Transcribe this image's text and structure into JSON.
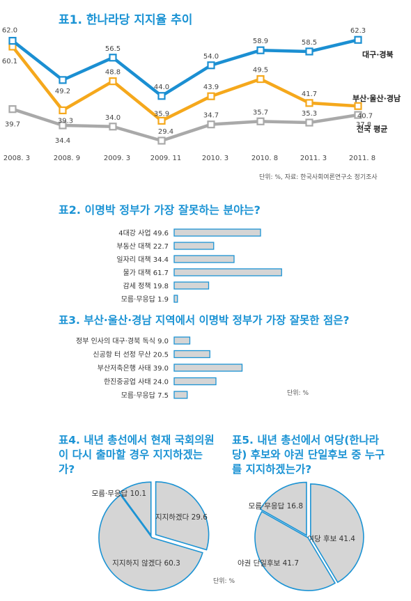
{
  "colors": {
    "title": "#1b93d4",
    "daegu": "#1b8fd2",
    "busan": "#f5a81c",
    "national": "#a9a9a9",
    "bar_fill": "#d5d5d5",
    "bar_stroke": "#1b93d4",
    "pie_fill": "#d5d5d5"
  },
  "titles": {
    "t1": "표1. 한나라당 지지율 추이",
    "t2": "표2. 이명박 정부가 가장 잘못하는 분야는?",
    "t3": "표3. 부산·울산·경남 지역에서 이명박 정부가 가장 잘못한 점은?",
    "t4": "표4. 내년 총선에서 현재 국회의원이 다시 출마할 경우 지지하겠는가?",
    "t5": "표5. 내년 총선에서 여당(한나라당) 후보와 야권 단일후보 중 누구를 지지하겠는가?"
  },
  "notes": {
    "source": "단위: %,  자료: 한국사회여론연구소 정기조사",
    "unit_bar": "단위: %",
    "unit_pie": "단위: %"
  },
  "chart_data": [
    {
      "type": "line",
      "categories": [
        "2008. 3",
        "2008. 9",
        "2009. 3",
        "2009. 11",
        "2010. 3",
        "2010. 8",
        "2011. 3",
        "2011. 8"
      ],
      "series": [
        {
          "name": "대구·경북",
          "values": [
            62.0,
            49.2,
            56.5,
            44.0,
            54.0,
            58.9,
            58.5,
            62.3
          ],
          "labels": [
            "62.0",
            "49.2",
            "56.5",
            "44.0",
            "54.0",
            "58.9",
            "58.5",
            "62.3"
          ]
        },
        {
          "name": "부산·울산·경남",
          "values": [
            60.1,
            39.3,
            48.8,
            35.9,
            43.9,
            49.5,
            41.7,
            40.7
          ],
          "labels": [
            "60.1",
            "39.3",
            "48.8",
            "35.9",
            "43.9",
            "49.5",
            "41.7",
            "40.7"
          ]
        },
        {
          "name": "전국 평균",
          "values": [
            39.7,
            34.4,
            34.0,
            29.4,
            34.7,
            35.7,
            35.3,
            37.8
          ],
          "labels": [
            "39.7",
            "34.4",
            "34.0",
            "29.4",
            "34.7",
            "35.7",
            "35.3",
            "37.8"
          ]
        }
      ]
    },
    {
      "type": "bar",
      "categories": [
        "4대강 사업",
        "부동산 대책",
        "일자리 대책",
        "물가 대책",
        "감세 정책",
        "모름·무응답"
      ],
      "values": [
        49.6,
        22.7,
        34.4,
        61.7,
        19.8,
        1.9
      ],
      "value_labels": [
        "49.6",
        "22.7",
        "34.4",
        "61.7",
        "19.8",
        "1.9"
      ]
    },
    {
      "type": "bar",
      "categories": [
        "정부 인사의 대구·경북 독식",
        "신공항 터 선정 무산",
        "부산저축은행 사태",
        "한진중공업 사태",
        "모름·무응답"
      ],
      "values": [
        9.0,
        20.5,
        39.0,
        24.0,
        7.5
      ],
      "value_labels": [
        "9.0",
        "20.5",
        "39.0",
        "24.0",
        "7.5"
      ]
    },
    {
      "type": "pie",
      "labels": [
        "모름·무응답",
        "지지하겠다",
        "지지하지 않겠다"
      ],
      "values": [
        10.1,
        29.6,
        60.3
      ],
      "value_labels": [
        "10.1",
        "29.6",
        "60.3"
      ]
    },
    {
      "type": "pie",
      "labels": [
        "모름·무응답",
        "여당 후보",
        "야권 단일후보"
      ],
      "values": [
        16.8,
        41.4,
        41.7
      ],
      "value_labels": [
        "16.8",
        "41.4",
        "41.7"
      ]
    }
  ]
}
